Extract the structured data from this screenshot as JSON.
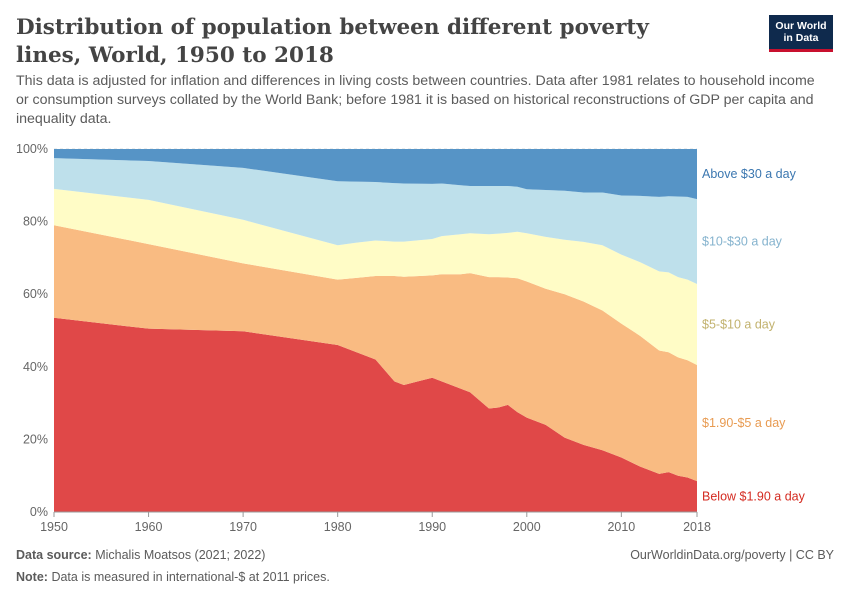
{
  "header": {
    "title": "Distribution of population between different poverty lines, World, 1950 to 2018",
    "subtitle": "This data is adjusted for inflation and differences in living costs between countries. Data after 1981 relates to household income or consumption surveys collated by the World Bank; before 1981 it is based on historical reconstructions of GDP per capita and inequality data.",
    "logo_line1": "Our World",
    "logo_line2": "in Data"
  },
  "footer": {
    "source_label": "Data source:",
    "source_text": "Michalis Moatsos (2021; 2022)",
    "note_label": "Note:",
    "note_text": "Data is measured in international-$ at 2011 prices.",
    "link_text": "OurWorldinData.org/poverty | CC BY"
  },
  "chart_data": {
    "type": "area",
    "stacked": true,
    "x": [
      1950,
      1960,
      1970,
      1980,
      1982,
      1984,
      1986,
      1987,
      1990,
      1991,
      1993,
      1994,
      1996,
      1997,
      1998,
      1999,
      2000,
      2002,
      2004,
      2006,
      2008,
      2010,
      2012,
      2014,
      2015,
      2016,
      2017,
      2018
    ],
    "series": [
      {
        "name": "Below $1.90 a day",
        "color": "#e04848",
        "values": [
          53.5,
          50.5,
          49.8,
          46.0,
          44.0,
          42.0,
          36.0,
          35.0,
          37.0,
          36.0,
          34.0,
          33.0,
          28.5,
          28.8,
          29.5,
          27.5,
          26.0,
          24.0,
          20.5,
          18.5,
          17.0,
          15.0,
          12.5,
          10.5,
          11.0,
          10.0,
          9.5,
          8.5
        ]
      },
      {
        "name": "$1.90-$5 a day",
        "color": "#f9bb82",
        "values": [
          25.5,
          23.3,
          18.7,
          18.0,
          20.5,
          23.0,
          29.0,
          29.8,
          28.2,
          29.5,
          31.5,
          32.8,
          36.2,
          35.9,
          35.1,
          36.9,
          37.5,
          37.5,
          39.5,
          39.5,
          38.5,
          36.9,
          36.0,
          34.0,
          33.0,
          32.6,
          32.3,
          32.0
        ]
      },
      {
        "name": "$5-$10 a day",
        "color": "#fffcc6",
        "values": [
          10.0,
          12.2,
          12.0,
          9.5,
          9.7,
          9.8,
          9.5,
          9.7,
          10.0,
          10.5,
          11.0,
          11.0,
          11.8,
          12.0,
          12.3,
          12.8,
          13.3,
          14.3,
          15.0,
          16.4,
          18.0,
          19.0,
          20.3,
          21.8,
          22.0,
          22.1,
          22.2,
          22.3
        ]
      },
      {
        "name": "$10-$30 a day",
        "color": "#bee0eb",
        "values": [
          8.5,
          10.7,
          14.3,
          17.6,
          16.8,
          16.1,
          16.1,
          16.0,
          15.2,
          14.5,
          13.5,
          13.0,
          13.3,
          13.1,
          12.9,
          12.4,
          12.1,
          12.9,
          13.5,
          13.6,
          14.5,
          16.3,
          18.3,
          20.5,
          21.0,
          22.2,
          22.8,
          23.4
        ]
      },
      {
        "name": "Above $30 a day",
        "color": "#5694c6",
        "values": [
          2.5,
          3.3,
          5.2,
          8.9,
          9.0,
          9.1,
          9.4,
          9.5,
          9.6,
          9.5,
          10.0,
          10.2,
          10.2,
          10.2,
          10.2,
          10.4,
          11.1,
          11.3,
          11.5,
          12.0,
          12.0,
          12.8,
          12.9,
          13.2,
          13.0,
          13.1,
          13.2,
          13.8
        ]
      }
    ],
    "y_ticks": [
      "0%",
      "20%",
      "40%",
      "60%",
      "80%",
      "100%"
    ],
    "y_tick_values": [
      0,
      20,
      40,
      60,
      80,
      100
    ],
    "x_ticks": [
      "1950",
      "1960",
      "1970",
      "1980",
      "1990",
      "2000",
      "2010",
      "2018"
    ],
    "x_tick_values": [
      1950,
      1960,
      1970,
      1980,
      1990,
      2000,
      2010,
      2018
    ],
    "xlim": [
      1950,
      2018
    ],
    "ylim": [
      0,
      100
    ],
    "legend_position": "right",
    "label_colors": [
      "#d42b21",
      "#e89b52",
      "#c2b26e",
      "#85b3ce",
      "#3b77b0"
    ]
  }
}
